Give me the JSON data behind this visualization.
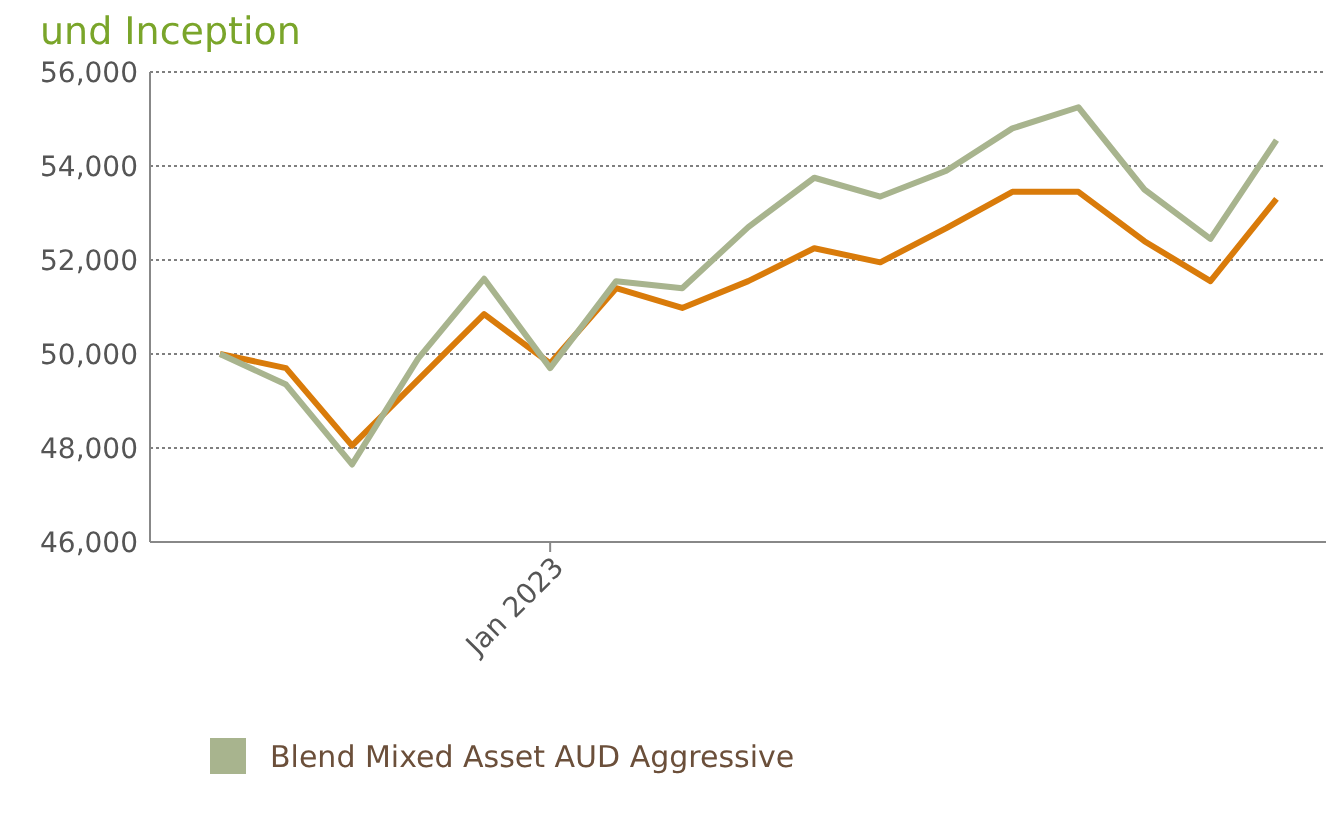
{
  "chart_data": {
    "type": "line",
    "title": "und Inception",
    "categories": [
      null,
      null,
      null,
      null,
      null,
      "Jan 2023",
      null,
      null,
      null,
      null,
      null,
      null,
      null,
      null,
      null,
      null,
      null
    ],
    "series": [
      {
        "color": "#d97b0a",
        "values": [
          50000,
          49700,
          48050,
          49450,
          50850,
          49800,
          51400,
          50980,
          51550,
          52250,
          51950,
          52680,
          53450,
          53450,
          52400,
          51550,
          53300
        ]
      },
      {
        "name": "Blend Mixed Asset AUD Aggressive",
        "color": "#a8b48e",
        "values": [
          50000,
          49350,
          47650,
          49900,
          51600,
          49700,
          51550,
          51400,
          52700,
          53750,
          53350,
          53900,
          54800,
          55250,
          53500,
          52450,
          54550
        ]
      }
    ],
    "ylim": [
      46000,
      56000
    ],
    "yticks": [
      {
        "value": 46000,
        "label": "46,000"
      },
      {
        "value": 48000,
        "label": "48,000"
      },
      {
        "value": 50000,
        "label": "50,000"
      },
      {
        "value": 52000,
        "label": "52,000"
      },
      {
        "value": 54000,
        "label": "54,000"
      },
      {
        "value": 56000,
        "label": "56,000"
      }
    ],
    "grid": "y",
    "legend": "bottom",
    "line_style": "solid",
    "marker": "none"
  }
}
